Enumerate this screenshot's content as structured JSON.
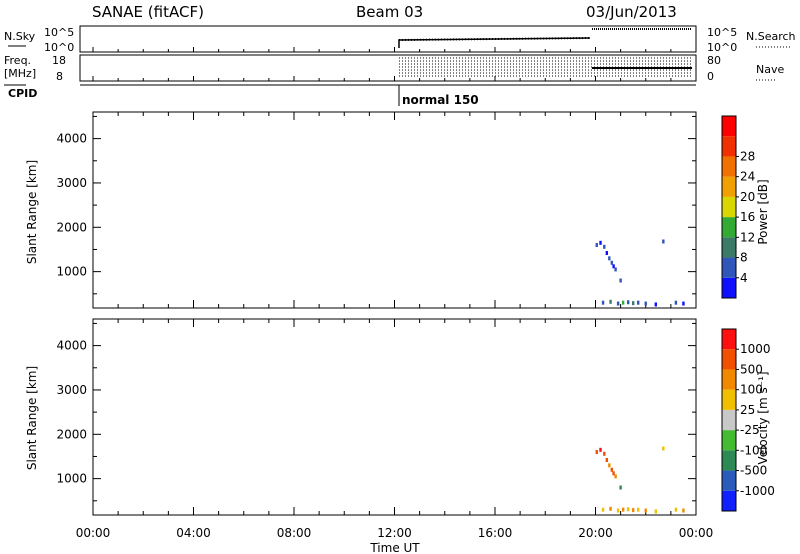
{
  "header": {
    "station": "SANAE (fitACF)",
    "beam": "Beam 03",
    "date": "03/Jun/2013"
  },
  "summary": {
    "nsky_label": "N.Sky",
    "nsky_ticks": [
      "10^5",
      "10^0"
    ],
    "nsearch_label": "N.Search",
    "nsearch_ticks": [
      "10^5",
      "10^0"
    ],
    "freq_label_1": "Freq.",
    "freq_label_2": "[MHz]",
    "freq_ticks": [
      "18",
      "8"
    ],
    "nave_label": "Nave",
    "nave_ticks": [
      "80",
      "0"
    ],
    "cpid_label": "CPID",
    "cpid_text": "normal 150"
  },
  "axes": {
    "xlabel": "Time UT",
    "xticks": [
      "00:00",
      "04:00",
      "08:00",
      "12:00",
      "16:00",
      "20:00",
      "00:00"
    ],
    "ylabel": "Slant Range [km]",
    "yticks": [
      "1000",
      "2000",
      "3000",
      "4000"
    ]
  },
  "colorbars": {
    "power": {
      "label": "Power [dB]",
      "ticks": [
        "4",
        "8",
        "12",
        "16",
        "20",
        "24",
        "28"
      ],
      "colors": [
        "#1010ff",
        "#2f56b8",
        "#3b7a66",
        "#33aa33",
        "#d8d800",
        "#f0a000",
        "#f07000",
        "#f03000",
        "#ff0000"
      ]
    },
    "velocity": {
      "label": "Velocity [m s⁻¹]",
      "ticks": [
        "1000",
        "500",
        "100",
        "25",
        "-25",
        "-100",
        "-500",
        "-1000"
      ],
      "colors": [
        "#1020ff",
        "#2a5aba",
        "#2e8a55",
        "#44bb33",
        "#c8c8c8",
        "#f0c000",
        "#f08800",
        "#f05000",
        "#ff1010"
      ]
    }
  },
  "chart_data": [
    {
      "type": "scatter",
      "title": "Power",
      "xlabel": "Time UT",
      "ylabel": "Slant Range [km]",
      "xlim": [
        0,
        24
      ],
      "ylim": [
        180,
        4600
      ],
      "points": [
        {
          "x": 20.05,
          "y": 1600,
          "c": "#2f56b8"
        },
        {
          "x": 20.2,
          "y": 1650,
          "c": "#1010ff"
        },
        {
          "x": 20.35,
          "y": 1560,
          "c": "#2f56b8"
        },
        {
          "x": 20.45,
          "y": 1420,
          "c": "#1010ff"
        },
        {
          "x": 20.55,
          "y": 1300,
          "c": "#2f56b8"
        },
        {
          "x": 20.65,
          "y": 1200,
          "c": "#2f56b8"
        },
        {
          "x": 20.72,
          "y": 1120,
          "c": "#1010ff"
        },
        {
          "x": 20.8,
          "y": 1050,
          "c": "#2f56b8"
        },
        {
          "x": 21.0,
          "y": 800,
          "c": "#2f56b8"
        },
        {
          "x": 20.3,
          "y": 300,
          "c": "#2f56b8"
        },
        {
          "x": 20.6,
          "y": 320,
          "c": "#3b7a66"
        },
        {
          "x": 20.9,
          "y": 280,
          "c": "#2f56b8"
        },
        {
          "x": 21.1,
          "y": 300,
          "c": "#33aa33"
        },
        {
          "x": 21.3,
          "y": 310,
          "c": "#2f56b8"
        },
        {
          "x": 21.5,
          "y": 290,
          "c": "#3b7a66"
        },
        {
          "x": 21.7,
          "y": 300,
          "c": "#2f56b8"
        },
        {
          "x": 22.0,
          "y": 280,
          "c": "#2f56b8"
        },
        {
          "x": 22.4,
          "y": 260,
          "c": "#1010ff"
        },
        {
          "x": 22.7,
          "y": 1680,
          "c": "#2f56b8"
        },
        {
          "x": 23.2,
          "y": 300,
          "c": "#2f56b8"
        },
        {
          "x": 23.5,
          "y": 280,
          "c": "#1010ff"
        }
      ]
    },
    {
      "type": "scatter",
      "title": "Velocity",
      "xlabel": "Time UT",
      "ylabel": "Slant Range [km]",
      "xlim": [
        0,
        24
      ],
      "ylim": [
        180,
        4600
      ],
      "points": [
        {
          "x": 20.05,
          "y": 1600,
          "c": "#f05000"
        },
        {
          "x": 20.2,
          "y": 1650,
          "c": "#ff1010"
        },
        {
          "x": 20.35,
          "y": 1560,
          "c": "#f05000"
        },
        {
          "x": 20.45,
          "y": 1420,
          "c": "#f05000"
        },
        {
          "x": 20.55,
          "y": 1300,
          "c": "#f08800"
        },
        {
          "x": 20.65,
          "y": 1200,
          "c": "#f05000"
        },
        {
          "x": 20.72,
          "y": 1120,
          "c": "#f05000"
        },
        {
          "x": 20.8,
          "y": 1050,
          "c": "#f08800"
        },
        {
          "x": 21.0,
          "y": 800,
          "c": "#2e8a55"
        },
        {
          "x": 20.3,
          "y": 300,
          "c": "#f0c000"
        },
        {
          "x": 20.6,
          "y": 320,
          "c": "#f08800"
        },
        {
          "x": 20.9,
          "y": 280,
          "c": "#f0c000"
        },
        {
          "x": 21.1,
          "y": 300,
          "c": "#f08800"
        },
        {
          "x": 21.3,
          "y": 310,
          "c": "#f0c000"
        },
        {
          "x": 21.5,
          "y": 290,
          "c": "#f08800"
        },
        {
          "x": 21.7,
          "y": 300,
          "c": "#f0c000"
        },
        {
          "x": 22.0,
          "y": 280,
          "c": "#f08800"
        },
        {
          "x": 22.4,
          "y": 260,
          "c": "#f0c000"
        },
        {
          "x": 22.7,
          "y": 1680,
          "c": "#f0c000"
        },
        {
          "x": 23.2,
          "y": 300,
          "c": "#f0c000"
        },
        {
          "x": 23.5,
          "y": 280,
          "c": "#f08800"
        }
      ]
    }
  ]
}
